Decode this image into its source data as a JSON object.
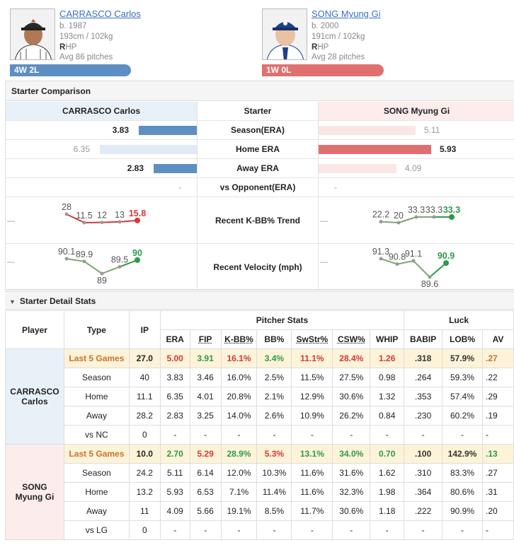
{
  "top_link": "ᴗ ᴗ ·",
  "players": [
    {
      "name": "CARRASCO Carlos",
      "born": "b. 1987",
      "size": "193cm / 102kg",
      "hand_b": "R",
      "hand_rest": "HP",
      "avg": "Avg 86 pitches",
      "record": "4W 2L",
      "color": "#5d8fc2"
    },
    {
      "name": "SONG Myung Gi",
      "born": "b. 2000",
      "size": "191cm / 102kg",
      "hand_b": "R",
      "hand_rest": "HP",
      "avg": "Avg 28 pitches",
      "record": "1W 0L",
      "color": "#e07070"
    }
  ],
  "comparison": {
    "title": "Starter Comparison",
    "header": {
      "left": "CARRASCO Carlos",
      "mid": "Starter",
      "right": "SONG Myung Gi"
    },
    "rows": [
      {
        "label": "Season(ERA)",
        "left": "3.83",
        "right": "5.11",
        "left_val": 3.83,
        "right_val": 5.11,
        "winner": "left"
      },
      {
        "label": "Home ERA",
        "left": "6.35",
        "right": "5.93",
        "left_val": 6.35,
        "right_val": 5.93,
        "winner": "right"
      },
      {
        "label": "Away ERA",
        "left": "2.83",
        "right": "4.09",
        "left_val": 2.83,
        "right_val": 4.09,
        "winner": "left"
      },
      {
        "label": "vs Opponent(ERA)",
        "left": "-",
        "right": "-"
      }
    ],
    "kbb_label": "Recent K-BB% Trend",
    "velo_label": "Recent Velocity (mph)",
    "axis_dash": "—"
  },
  "chart_data": [
    {
      "type": "line",
      "name": "CARRASCO K-BB%",
      "values": [
        28,
        11.5,
        12,
        13,
        15.8
      ],
      "labels": [
        "28",
        "11.5",
        "12",
        "13",
        "15.8"
      ],
      "last_color": "#d23a3a"
    },
    {
      "type": "line",
      "name": "SONG K-BB%",
      "values": [
        22.2,
        20,
        33.3,
        33.3,
        33.3
      ],
      "labels": [
        "22.2",
        "20",
        "33.3",
        "33.3",
        "33.3"
      ],
      "last_color": "#2e9a4b"
    },
    {
      "type": "line",
      "name": "CARRASCO Velocity",
      "values": [
        90.1,
        89.9,
        89,
        89.5,
        90
      ],
      "labels": [
        "90.1",
        "89.9",
        "89",
        "89.5",
        "90"
      ],
      "last_color": "#2e9a4b"
    },
    {
      "type": "line",
      "name": "SONG Velocity",
      "values": [
        91.3,
        90.8,
        91.1,
        89.6,
        90.9
      ],
      "labels": [
        "91.3",
        "90.8",
        "91.1",
        "89.6",
        "90.9"
      ],
      "last_color": "#2e9a4b"
    }
  ],
  "detail": {
    "title": "Starter Detail Stats",
    "col_player": "Player",
    "col_type": "Type",
    "col_ip": "IP",
    "group_pitcher": "Pitcher Stats",
    "group_luck": "Luck",
    "stat_cols": [
      "ERA",
      "FIP",
      "K-BB%",
      "BB%",
      "SwStr%",
      "CSW%",
      "WHIP",
      "BABIP",
      "LOB%",
      "AV"
    ],
    "underlined": [
      false,
      true,
      true,
      false,
      true,
      true,
      false,
      false,
      false,
      false
    ],
    "players": [
      {
        "name_line1": "CARRASCO",
        "name_line2": "Carlos",
        "bg": "#e8f0f8",
        "rows": [
          {
            "type": "Last 5 Games",
            "ip": "27.0",
            "stats": [
              "5.00",
              "3.91",
              "16.1%",
              "3.4%",
              "11.1%",
              "28.4%",
              "1.26",
              ".318",
              "57.9%",
              ".27"
            ],
            "colors": [
              "red",
              "grn",
              "red",
              "grn",
              "red",
              "red",
              "red",
              "dk",
              "dk",
              "org"
            ],
            "highlight": true
          },
          {
            "type": "Season",
            "ip": "40",
            "stats": [
              "3.83",
              "3.46",
              "16.0%",
              "2.5%",
              "11.5%",
              "27.5%",
              "0.98",
              ".264",
              "59.3%",
              ".22"
            ]
          },
          {
            "type": "Home",
            "ip": "11.1",
            "stats": [
              "6.35",
              "4.01",
              "20.8%",
              "2.1%",
              "12.9%",
              "30.6%",
              "1.32",
              ".353",
              "57.4%",
              ".29"
            ]
          },
          {
            "type": "Away",
            "ip": "28.2",
            "stats": [
              "2.83",
              "3.25",
              "14.0%",
              "2.6%",
              "10.9%",
              "26.2%",
              "0.84",
              ".230",
              "60.2%",
              ".19"
            ]
          },
          {
            "type": "vs NC",
            "ip": "0",
            "stats": [
              "-",
              "-",
              "-",
              "-",
              "-",
              "-",
              "-",
              "-",
              "-",
              "-"
            ]
          }
        ]
      },
      {
        "name_line1": "SONG",
        "name_line2": "Myung Gi",
        "bg": "#fcecec",
        "rows": [
          {
            "type": "Last 5 Games",
            "ip": "10.0",
            "stats": [
              "2.70",
              "5.29",
              "28.9%",
              "5.3%",
              "13.1%",
              "34.0%",
              "0.70",
              ".100",
              "142.9%",
              ".13"
            ],
            "colors": [
              "grn",
              "red",
              "grn",
              "red",
              "grn",
              "grn",
              "grn",
              "dk",
              "dk",
              "grn"
            ],
            "highlight": true
          },
          {
            "type": "Season",
            "ip": "24.2",
            "stats": [
              "5.11",
              "6.14",
              "12.0%",
              "10.3%",
              "11.6%",
              "31.6%",
              "1.62",
              ".310",
              "83.3%",
              ".27"
            ]
          },
          {
            "type": "Home",
            "ip": "13.2",
            "stats": [
              "5.93",
              "6.53",
              "7.1%",
              "11.4%",
              "11.6%",
              "32.3%",
              "1.98",
              ".364",
              "80.6%",
              ".31"
            ]
          },
          {
            "type": "Away",
            "ip": "11",
            "stats": [
              "4.09",
              "5.66",
              "19.1%",
              "8.5%",
              "11.7%",
              "30.6%",
              "1.18",
              ".222",
              "90.9%",
              ".20"
            ]
          },
          {
            "type": "vs LG",
            "ip": "0",
            "stats": [
              "-",
              "-",
              "-",
              "-",
              "-",
              "-",
              "-",
              "-",
              "-",
              "-"
            ]
          }
        ]
      }
    ]
  }
}
